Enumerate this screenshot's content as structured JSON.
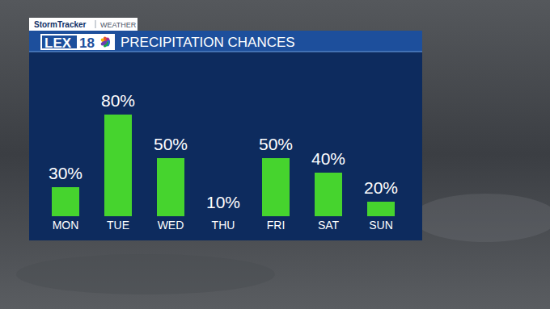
{
  "header": {
    "tag": "StormTracker",
    "section": "WEATHER",
    "logo_text": "LEX",
    "logo_number": "18"
  },
  "chart_data": {
    "type": "bar",
    "title": "PRECIPITATION CHANCES",
    "categories": [
      "MON",
      "TUE",
      "WED",
      "THU",
      "FRI",
      "SAT",
      "SUN"
    ],
    "values": [
      30,
      80,
      50,
      10,
      50,
      40,
      20
    ],
    "value_labels": [
      "30%",
      "80%",
      "50%",
      "10%",
      "50%",
      "40%",
      "20%"
    ],
    "color": "#46d42e",
    "ylim": [
      10,
      80
    ],
    "data_labels": true,
    "tick_labels": "x",
    "grid": false
  }
}
